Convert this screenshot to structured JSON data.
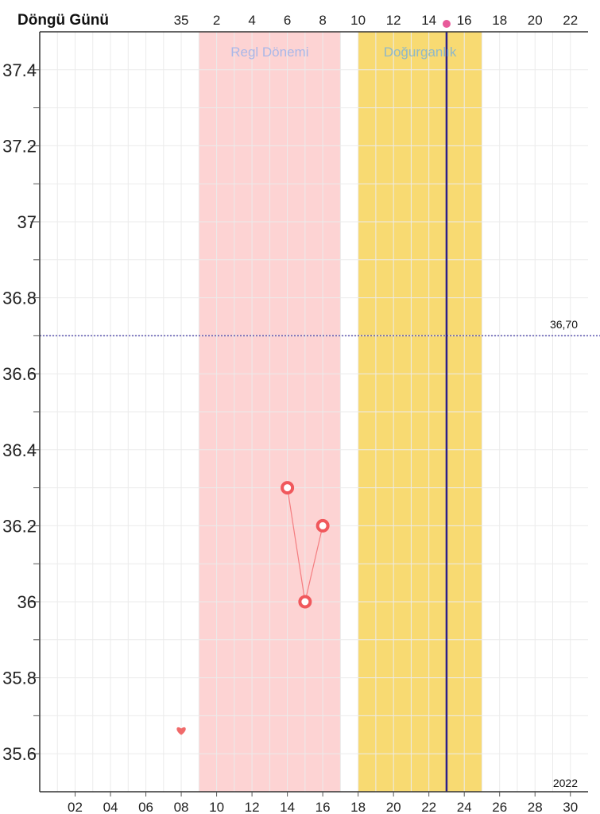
{
  "chart_data": {
    "type": "line",
    "cycle_axis_title": "Döngü Günü",
    "cycle_ticks": [
      "35",
      "2",
      "4",
      "6",
      "8",
      "10",
      "12",
      "14",
      "16",
      "18",
      "20",
      "22"
    ],
    "date_ticks": [
      "02",
      "04",
      "06",
      "08",
      "10",
      "12",
      "14",
      "16",
      "18",
      "20",
      "22",
      "24",
      "26",
      "28",
      "30"
    ],
    "year_label": "2022",
    "yticks": [
      "35.6",
      "35.8",
      "36",
      "36.2",
      "36.4",
      "36.6",
      "36.8",
      "37",
      "37.2",
      "37.4"
    ],
    "ylim": [
      35.5,
      37.5
    ],
    "xlim": [
      0,
      31
    ],
    "grid": true,
    "bands": [
      {
        "label": "Regl Dönemi",
        "from": 9,
        "to": 17,
        "color": "#fdd3d3",
        "label_color": "#a9b7e8"
      },
      {
        "label": "Doğurganlık",
        "from": 18,
        "to": 25,
        "color": "#f8da72",
        "label_color": "#8fb8c8"
      }
    ],
    "series": [
      {
        "x": [
          14,
          15,
          16
        ],
        "values": [
          36.3,
          36.0,
          36.2
        ],
        "color": "#f0585c"
      }
    ],
    "reference_line": {
      "value": 36.7,
      "label": "36,70",
      "color": "#5c55b0"
    },
    "today_line": {
      "x": 23,
      "color": "#2b1f8a",
      "marker_color": "#e85a9a"
    },
    "heart_marker": {
      "x": 8,
      "y": 35.66,
      "color": "#f06a6a"
    }
  }
}
